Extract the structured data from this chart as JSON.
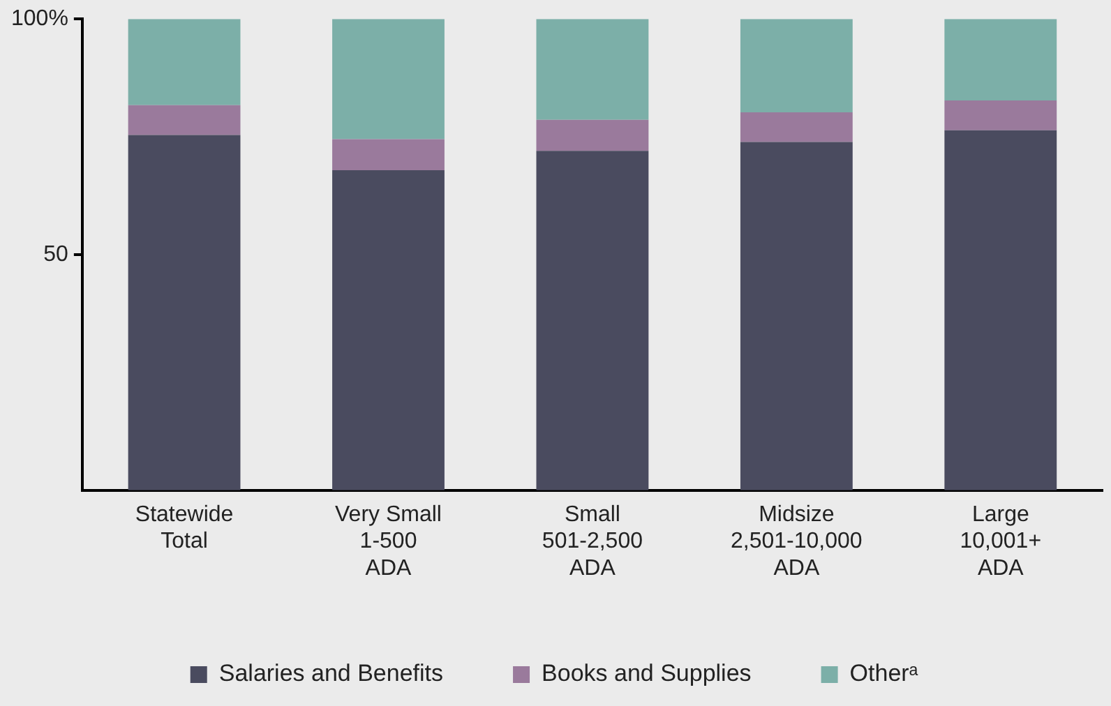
{
  "chart_data": {
    "type": "bar",
    "stacked": true,
    "categories": [
      "Statewide\nTotal",
      "Very Small\n1-500\nADA",
      "Small\n501-2,500\nADA",
      "Midsize\n2,501-10,000\nADA",
      "Large\n10,001+\nADA"
    ],
    "series": [
      {
        "name": "Salaries and Benefits",
        "color": "#4a4b5f",
        "values": [
          75.4,
          67.9,
          72.0,
          73.9,
          76.4
        ]
      },
      {
        "name": "Books and Supplies",
        "color": "#9a7a9c",
        "values": [
          6.3,
          6.6,
          6.6,
          6.3,
          6.3
        ]
      },
      {
        "name": "Otherᵃ",
        "color": "#7cafa8",
        "values": [
          18.3,
          25.5,
          21.4,
          19.8,
          17.3
        ]
      }
    ],
    "ylim": [
      0,
      100
    ],
    "yticks": [
      50,
      {
        "value": 100,
        "label": "100%"
      }
    ],
    "grid": false,
    "legend": "bottom"
  }
}
